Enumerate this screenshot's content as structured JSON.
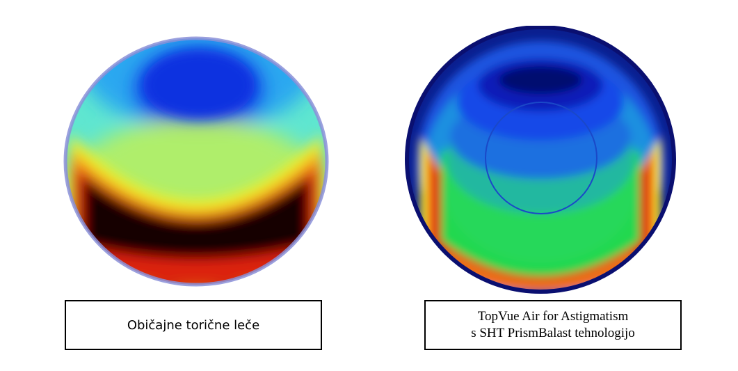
{
  "lens_left": {
    "caption": "Običajne torične leče"
  },
  "lens_right": {
    "caption_line1": "TopVue Air for Astigmatism",
    "caption_line2": "s SHT PrismBalast tehnologijo"
  },
  "colors": {
    "deep_blue": "#0a1fd8",
    "blue": "#1a6ff0",
    "cyan": "#22d8f0",
    "green": "#22d84a",
    "yellow": "#f2f22a",
    "orange": "#f28a1a",
    "red": "#e01a10",
    "black": "#0a0000",
    "rim": "#8a8fd8"
  }
}
